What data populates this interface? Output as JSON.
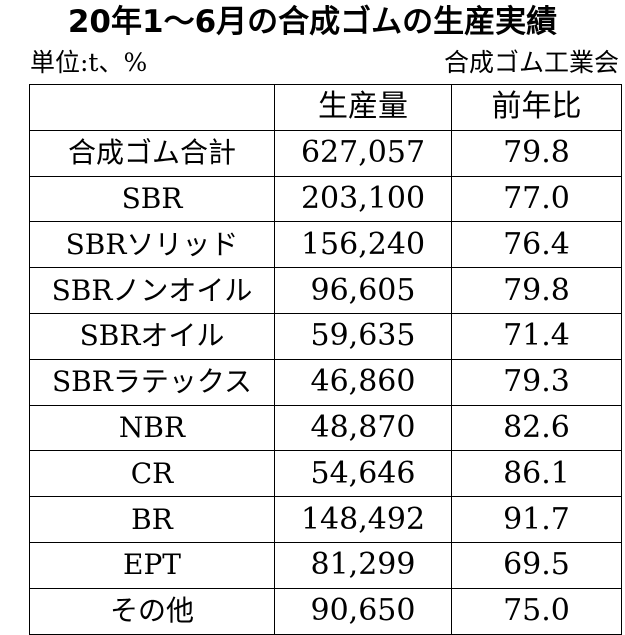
{
  "title": "20年1～6月の合成ゴムの生産実績",
  "unit": "単位:t、%",
  "source": "合成ゴム工業会",
  "table": {
    "headers": [
      "",
      "生産量",
      "前年比"
    ],
    "rows": [
      {
        "name": "合成ゴム合計",
        "production": "627,057",
        "yoy": "79.8"
      },
      {
        "name": "SBR",
        "production": "203,100",
        "yoy": "77.0"
      },
      {
        "name": "SBRソリッド",
        "production": "156,240",
        "yoy": "76.4"
      },
      {
        "name": "SBRノンオイル",
        "production": "96,605",
        "yoy": "79.8"
      },
      {
        "name": "SBRオイル",
        "production": "59,635",
        "yoy": "71.4"
      },
      {
        "name": "SBRラテックス",
        "production": "46,860",
        "yoy": "79.3"
      },
      {
        "name": "NBR",
        "production": "48,870",
        "yoy": "82.6"
      },
      {
        "name": "CR",
        "production": "54,646",
        "yoy": "86.1"
      },
      {
        "name": "BR",
        "production": "148,492",
        "yoy": "91.7"
      },
      {
        "name": "EPT",
        "production": "81,299",
        "yoy": "69.5"
      },
      {
        "name": "その他",
        "production": "90,650",
        "yoy": "75.0"
      }
    ]
  }
}
